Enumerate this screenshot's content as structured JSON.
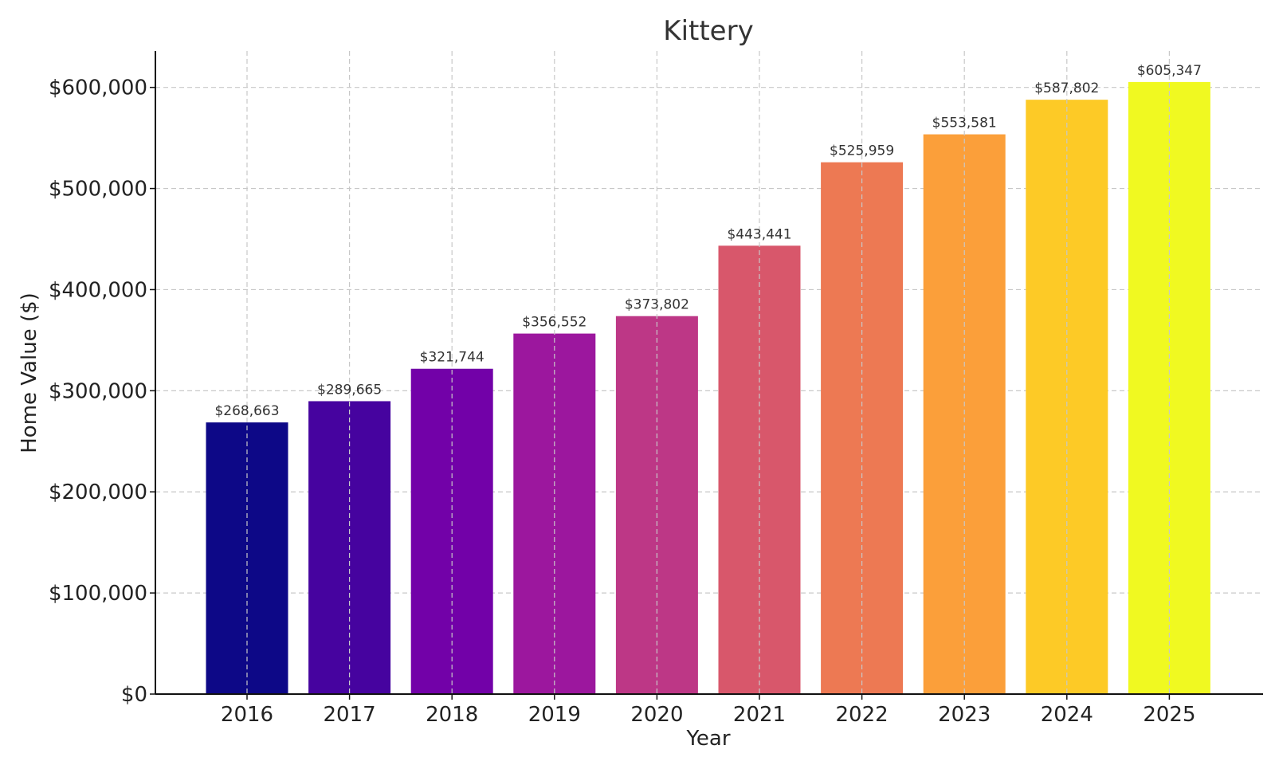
{
  "chart_data": {
    "type": "bar",
    "title": "Kittery",
    "xlabel": "Year",
    "ylabel": "Home Value ($)",
    "categories": [
      "2016",
      "2017",
      "2018",
      "2019",
      "2020",
      "2021",
      "2022",
      "2023",
      "2024",
      "2025"
    ],
    "values": [
      268663,
      289665,
      321744,
      356552,
      373802,
      443441,
      525959,
      553581,
      587802,
      605347
    ],
    "value_labels": [
      "$268,663",
      "$289,665",
      "$321,744",
      "$356,552",
      "$373,802",
      "$443,441",
      "$525,959",
      "$553,581",
      "$587,802",
      "$605,347"
    ],
    "colors": [
      "#0d0887",
      "#46039f",
      "#7201a8",
      "#9c179e",
      "#bd3786",
      "#d8576b",
      "#ed7953",
      "#fb9f3a",
      "#fdca26",
      "#f0f921"
    ],
    "ylim": [
      0,
      636000
    ],
    "yticks": [
      0,
      100000,
      200000,
      300000,
      400000,
      500000,
      600000
    ],
    "ytick_labels": [
      "$0",
      "$100,000",
      "$200,000",
      "$300,000",
      "$400,000",
      "$500,000",
      "$600,000"
    ],
    "grid": true,
    "legend": "none"
  }
}
